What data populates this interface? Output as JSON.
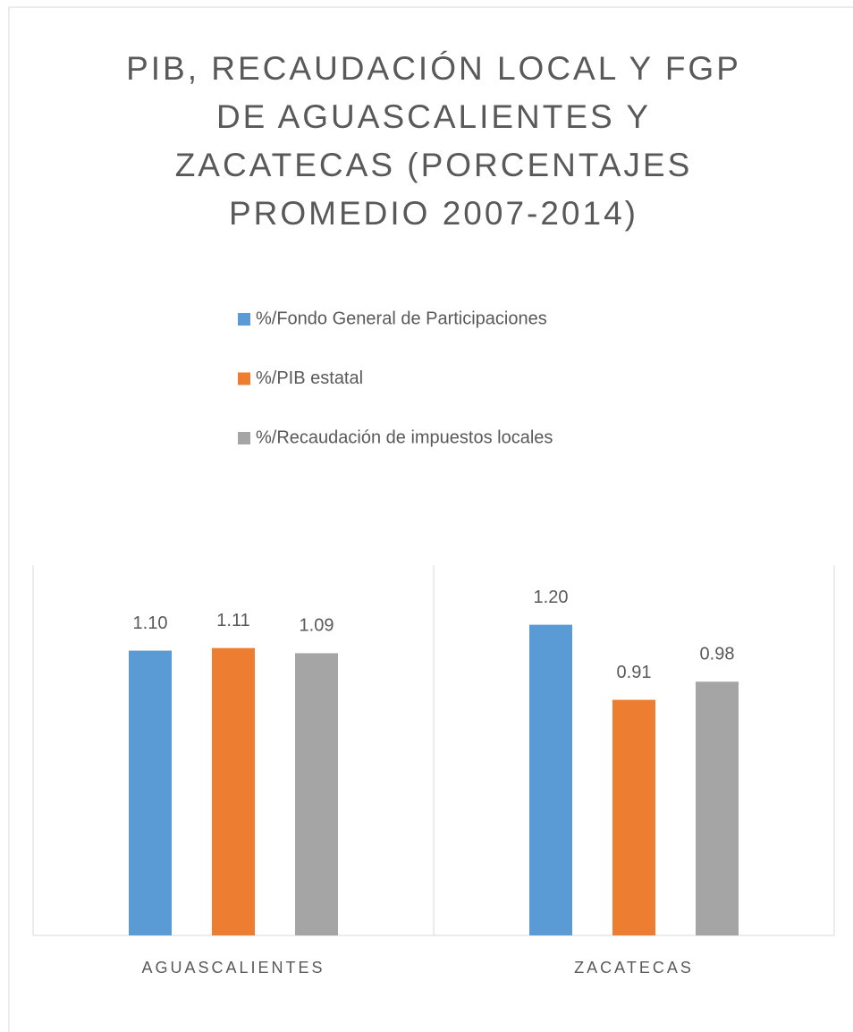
{
  "chart_data": {
    "type": "bar",
    "title": "PIB, RECAUDACIÓN LOCAL Y FGP DE AGUASCALIENTES Y ZACATECAS (PORCENTAJES PROMEDIO 2007-2014)",
    "categories": [
      "AGUASCALIENTES",
      "ZACATECAS"
    ],
    "series": [
      {
        "name": "%/Fondo General de Participaciones",
        "color": "#5b9bd5",
        "values": [
          1.1,
          1.2
        ],
        "value_labels": [
          "1.10",
          "1.20"
        ]
      },
      {
        "name": "%/PIB estatal",
        "color": "#ed7d31",
        "values": [
          1.11,
          0.91
        ],
        "value_labels": [
          "1.11",
          "0.91"
        ]
      },
      {
        "name": "%/Recaudación de impuestos locales",
        "color": "#a5a5a5",
        "values": [
          1.09,
          0.98
        ],
        "value_labels": [
          "1.09",
          "0.98"
        ]
      }
    ],
    "ylim": [
      0,
      1.43
    ],
    "legend": "top"
  }
}
